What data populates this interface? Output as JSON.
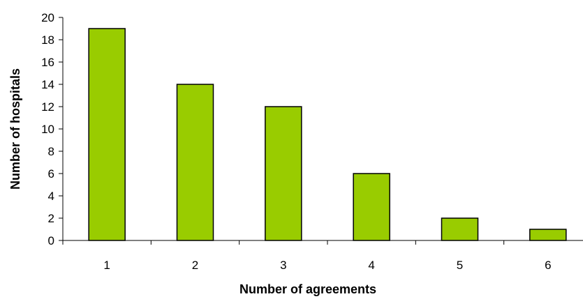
{
  "chart_data": {
    "type": "bar",
    "categories": [
      "1",
      "2",
      "3",
      "4",
      "5",
      "6"
    ],
    "values": [
      19,
      14,
      12,
      6,
      2,
      1
    ],
    "xlabel": "Number of agreements",
    "ylabel": "Number of hospitals",
    "ylim": [
      0,
      20
    ],
    "yticks": [
      0,
      2,
      4,
      6,
      8,
      10,
      12,
      14,
      16,
      18,
      20
    ],
    "grid": false,
    "legend": "none",
    "bar_color": "#99cc00",
    "bar_edge_color": "#000000"
  }
}
